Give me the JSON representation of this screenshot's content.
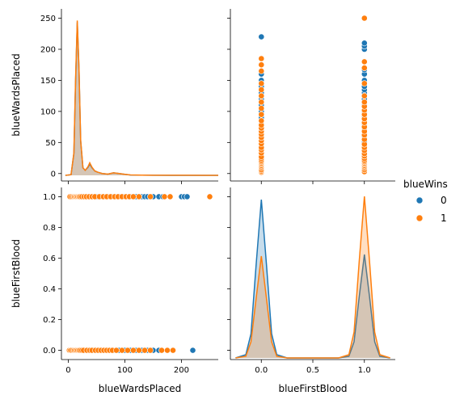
{
  "chart_data": {
    "type": "pairplot",
    "variables": [
      "blueWardsPlaced",
      "blueFirstBlood"
    ],
    "hue": {
      "title": "blueWins",
      "levels": [
        {
          "label": "0",
          "color": "#1f77b4"
        },
        {
          "label": "1",
          "color": "#ff7f0e"
        }
      ]
    },
    "axes": {
      "blueWardsPlaced": {
        "label": "blueWardsPlaced",
        "lim": [
          -12,
          265
        ],
        "ticks": [
          0,
          100,
          200
        ],
        "yticks": [
          0,
          50,
          100,
          150,
          200,
          250
        ]
      },
      "blueFirstBlood": {
        "label": "blueFirstBlood",
        "lim": [
          -0.3,
          1.3
        ],
        "ticks": [
          0.0,
          0.5,
          1.0
        ],
        "yticks": [
          0.0,
          0.2,
          0.4,
          0.6,
          0.8,
          1.0
        ],
        "xtick_labels": [
          "0.0",
          "0.5",
          "1.0"
        ],
        "ytick_labels": [
          "0.0",
          "0.2",
          "0.4",
          "0.6",
          "0.8",
          "1.0"
        ]
      }
    },
    "wards_kde": {
      "x": [
        -5,
        5,
        10,
        13,
        16,
        19,
        22,
        26,
        30,
        35,
        38,
        42,
        47,
        52,
        60,
        70,
        80,
        90,
        100,
        110,
        130,
        150,
        180,
        210,
        250,
        265
      ],
      "series": [
        {
          "name": "0",
          "values": [
            0,
            1,
            35,
            150,
            245,
            170,
            55,
            12,
            8,
            13,
            18,
            12,
            7,
            5,
            3,
            2,
            4,
            3,
            1.5,
            0.5,
            0.2,
            0.1,
            0,
            0,
            0,
            0
          ]
        },
        {
          "name": "1",
          "values": [
            0,
            1,
            36,
            155,
            248,
            172,
            56,
            12,
            8,
            14,
            20,
            13,
            7,
            5,
            3,
            2,
            4,
            3,
            1.5,
            0.6,
            0.3,
            0.15,
            0.1,
            0.1,
            0.05,
            0
          ]
        }
      ]
    },
    "firstblood_kde": {
      "x": [
        -0.25,
        -0.15,
        -0.1,
        -0.05,
        0.0,
        0.05,
        0.1,
        0.15,
        0.25,
        0.75,
        0.85,
        0.9,
        0.95,
        1.0,
        1.05,
        1.1,
        1.15,
        1.25
      ],
      "series": [
        {
          "name": "0",
          "values": [
            0,
            0.02,
            0.15,
            0.58,
            0.98,
            0.58,
            0.15,
            0.02,
            0,
            0,
            0.01,
            0.1,
            0.38,
            0.64,
            0.38,
            0.1,
            0.01,
            0
          ]
        },
        {
          "name": "1",
          "values": [
            0,
            0.01,
            0.1,
            0.37,
            0.63,
            0.37,
            0.1,
            0.01,
            0,
            0,
            0.02,
            0.16,
            0.6,
            1.0,
            0.6,
            0.16,
            0.02,
            0
          ]
        }
      ]
    },
    "scatter_fb0": {
      "0": [
        5,
        8,
        10,
        12,
        13,
        14,
        15,
        16,
        17,
        18,
        20,
        22,
        25,
        28,
        30,
        32,
        35,
        40,
        45,
        50,
        55,
        60,
        65,
        70,
        75,
        80,
        90,
        100,
        110,
        120,
        130,
        140,
        150,
        160,
        220
      ],
      "1": [
        2,
        4,
        6,
        9,
        11,
        13,
        15,
        17,
        19,
        21,
        24,
        27,
        33,
        38,
        42,
        48,
        53,
        58,
        63,
        68,
        73,
        78,
        85,
        95,
        105,
        115,
        125,
        135,
        145,
        165,
        175,
        185
      ]
    },
    "scatter_fb1": {
      "0": [
        5,
        8,
        10,
        12,
        14,
        15,
        16,
        18,
        20,
        23,
        26,
        30,
        35,
        40,
        45,
        50,
        60,
        70,
        80,
        90,
        100,
        110,
        120,
        130,
        135,
        140,
        150,
        160,
        167,
        200,
        205,
        210
      ],
      "1": [
        3,
        6,
        9,
        11,
        13,
        15,
        17,
        19,
        21,
        24,
        28,
        32,
        37,
        42,
        47,
        55,
        62,
        68,
        75,
        82,
        88,
        95,
        102,
        108,
        115,
        125,
        145,
        170,
        180,
        250
      ]
    }
  }
}
